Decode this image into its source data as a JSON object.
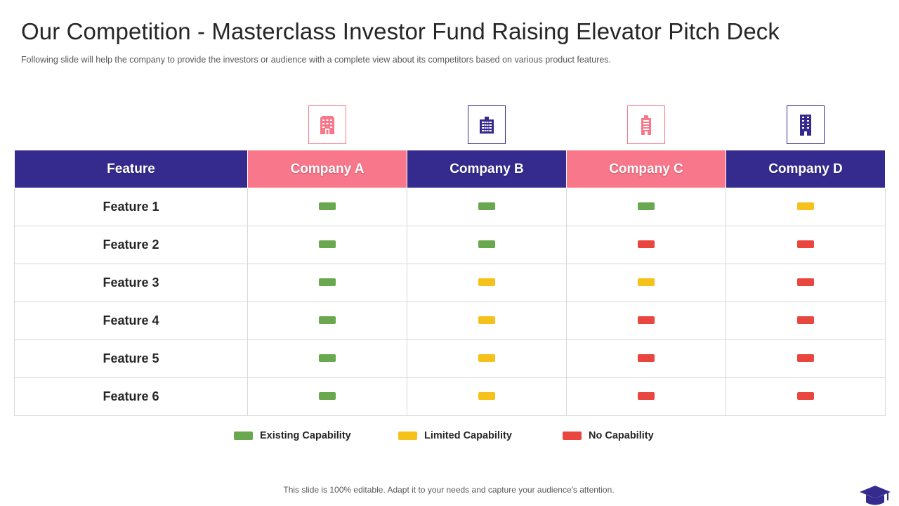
{
  "slide": {
    "title": "Our Competition - Masterclass Investor Fund Raising Elevator Pitch Deck",
    "subtitle": "Following slide will help the company to provide  the investors  or audience  with a complete view  about its competitors based on various  product features.",
    "footer": "This slide is 100% editable. Adapt it to your needs and capture your audience's attention."
  },
  "colors": {
    "navy": "#352b8f",
    "pink": "#f9778a",
    "green": "#6aa84f",
    "yellow": "#f6c11b",
    "red": "#e8463f"
  },
  "table": {
    "feature_header": "Feature",
    "companies": [
      {
        "name": "Company A",
        "header_color": "#f9778a",
        "icon": "building-icon"
      },
      {
        "name": "Company B",
        "header_color": "#352b8f",
        "icon": "office-building-icon"
      },
      {
        "name": "Company C",
        "header_color": "#f9778a",
        "icon": "tower-building-icon"
      },
      {
        "name": "Company D",
        "header_color": "#352b8f",
        "icon": "skyscraper-icon"
      }
    ],
    "rows": [
      {
        "feature": "Feature 1",
        "status": [
          "existing",
          "existing",
          "existing",
          "limited"
        ]
      },
      {
        "feature": "Feature 2",
        "status": [
          "existing",
          "existing",
          "none",
          "none"
        ]
      },
      {
        "feature": "Feature 3",
        "status": [
          "existing",
          "limited",
          "limited",
          "none"
        ]
      },
      {
        "feature": "Feature 4",
        "status": [
          "existing",
          "limited",
          "none",
          "none"
        ]
      },
      {
        "feature": "Feature 5",
        "status": [
          "existing",
          "limited",
          "none",
          "none"
        ]
      },
      {
        "feature": "Feature 6",
        "status": [
          "existing",
          "limited",
          "none",
          "none"
        ]
      }
    ]
  },
  "legend": [
    {
      "key": "existing",
      "label": "Existing Capability",
      "color": "#6aa84f"
    },
    {
      "key": "limited",
      "label": "Limited Capability",
      "color": "#f6c11b"
    },
    {
      "key": "none",
      "label": "No Capability",
      "color": "#e8463f"
    }
  ],
  "logo_icon": "graduation-cap-icon"
}
